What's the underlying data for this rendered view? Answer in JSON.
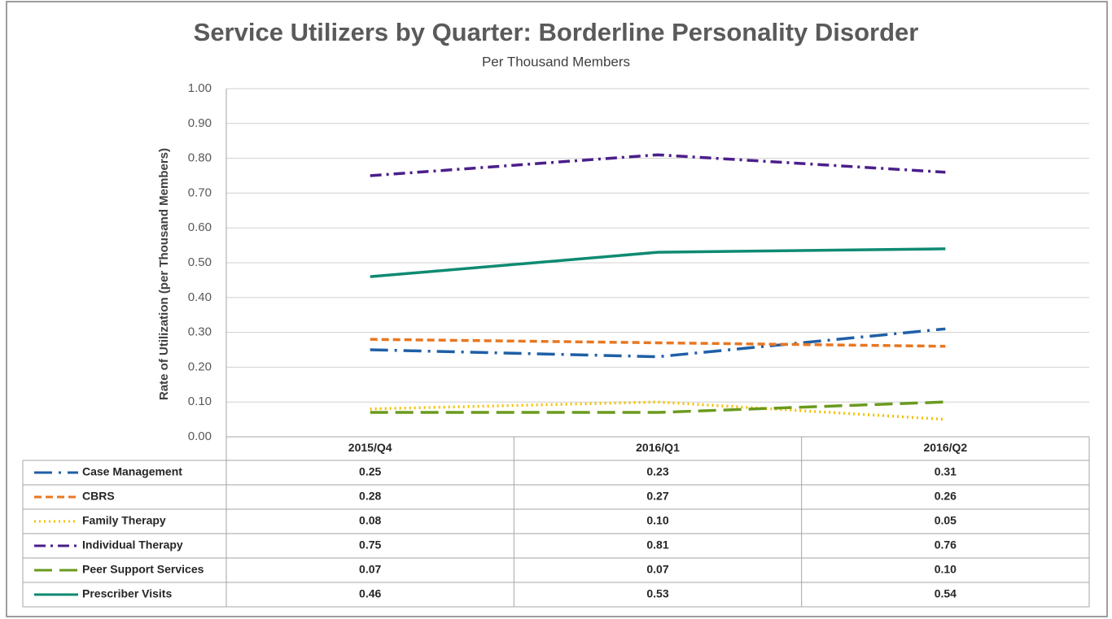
{
  "chart_data": {
    "type": "line",
    "title": "Service Utilizers by Quarter: Borderline Personality Disorder",
    "subtitle": "Per Thousand Members",
    "y_label": "Rate of Utilization (per Thousand Members)",
    "categories": [
      "2015/Q4",
      "2016/Q1",
      "2016/Q2"
    ],
    "ylim": [
      0,
      1
    ],
    "yticks": [
      {
        "value": 0,
        "label": "0.00"
      },
      {
        "value": 0.1,
        "label": "0.10"
      },
      {
        "value": 0.2,
        "label": "0.20"
      },
      {
        "value": 0.3,
        "label": "0.30"
      },
      {
        "value": 0.4,
        "label": "0.40"
      },
      {
        "value": 0.5,
        "label": "0.50"
      },
      {
        "value": 0.6,
        "label": "0.60"
      },
      {
        "value": 0.7,
        "label": "0.70"
      },
      {
        "value": 0.8,
        "label": "0.80"
      },
      {
        "value": 0.9,
        "label": "0.90"
      },
      {
        "value": 1,
        "label": "1.00"
      }
    ],
    "grid": true,
    "series": [
      {
        "name": "Case Management",
        "color": "#1f5fa6",
        "dash": "long-dash-dot",
        "values": [
          0.25,
          0.23,
          0.31
        ],
        "value_labels": [
          "0.25",
          "0.23",
          "0.31"
        ]
      },
      {
        "name": "CBRS",
        "color": "#e87722",
        "dash": "dash",
        "values": [
          0.28,
          0.27,
          0.26
        ],
        "value_labels": [
          "0.28",
          "0.27",
          "0.26"
        ]
      },
      {
        "name": "Family Therapy",
        "color": "#f2c200",
        "dash": "dot",
        "values": [
          0.08,
          0.1,
          0.05
        ],
        "value_labels": [
          "0.08",
          "0.10",
          "0.05"
        ]
      },
      {
        "name": "Individual Therapy",
        "color": "#4b1e8a",
        "dash": "dash-dot",
        "values": [
          0.75,
          0.81,
          0.76
        ],
        "value_labels": [
          "0.75",
          "0.81",
          "0.76"
        ]
      },
      {
        "name": "Peer Support Services",
        "color": "#6a9a1f",
        "dash": "long-dash",
        "values": [
          0.07,
          0.07,
          0.1
        ],
        "value_labels": [
          "0.07",
          "0.07",
          "0.10"
        ]
      },
      {
        "name": "Prescriber Visits",
        "color": "#0e8a72",
        "dash": "solid",
        "values": [
          0.46,
          0.53,
          0.54
        ],
        "value_labels": [
          "0.46",
          "0.53",
          "0.54"
        ]
      }
    ]
  }
}
